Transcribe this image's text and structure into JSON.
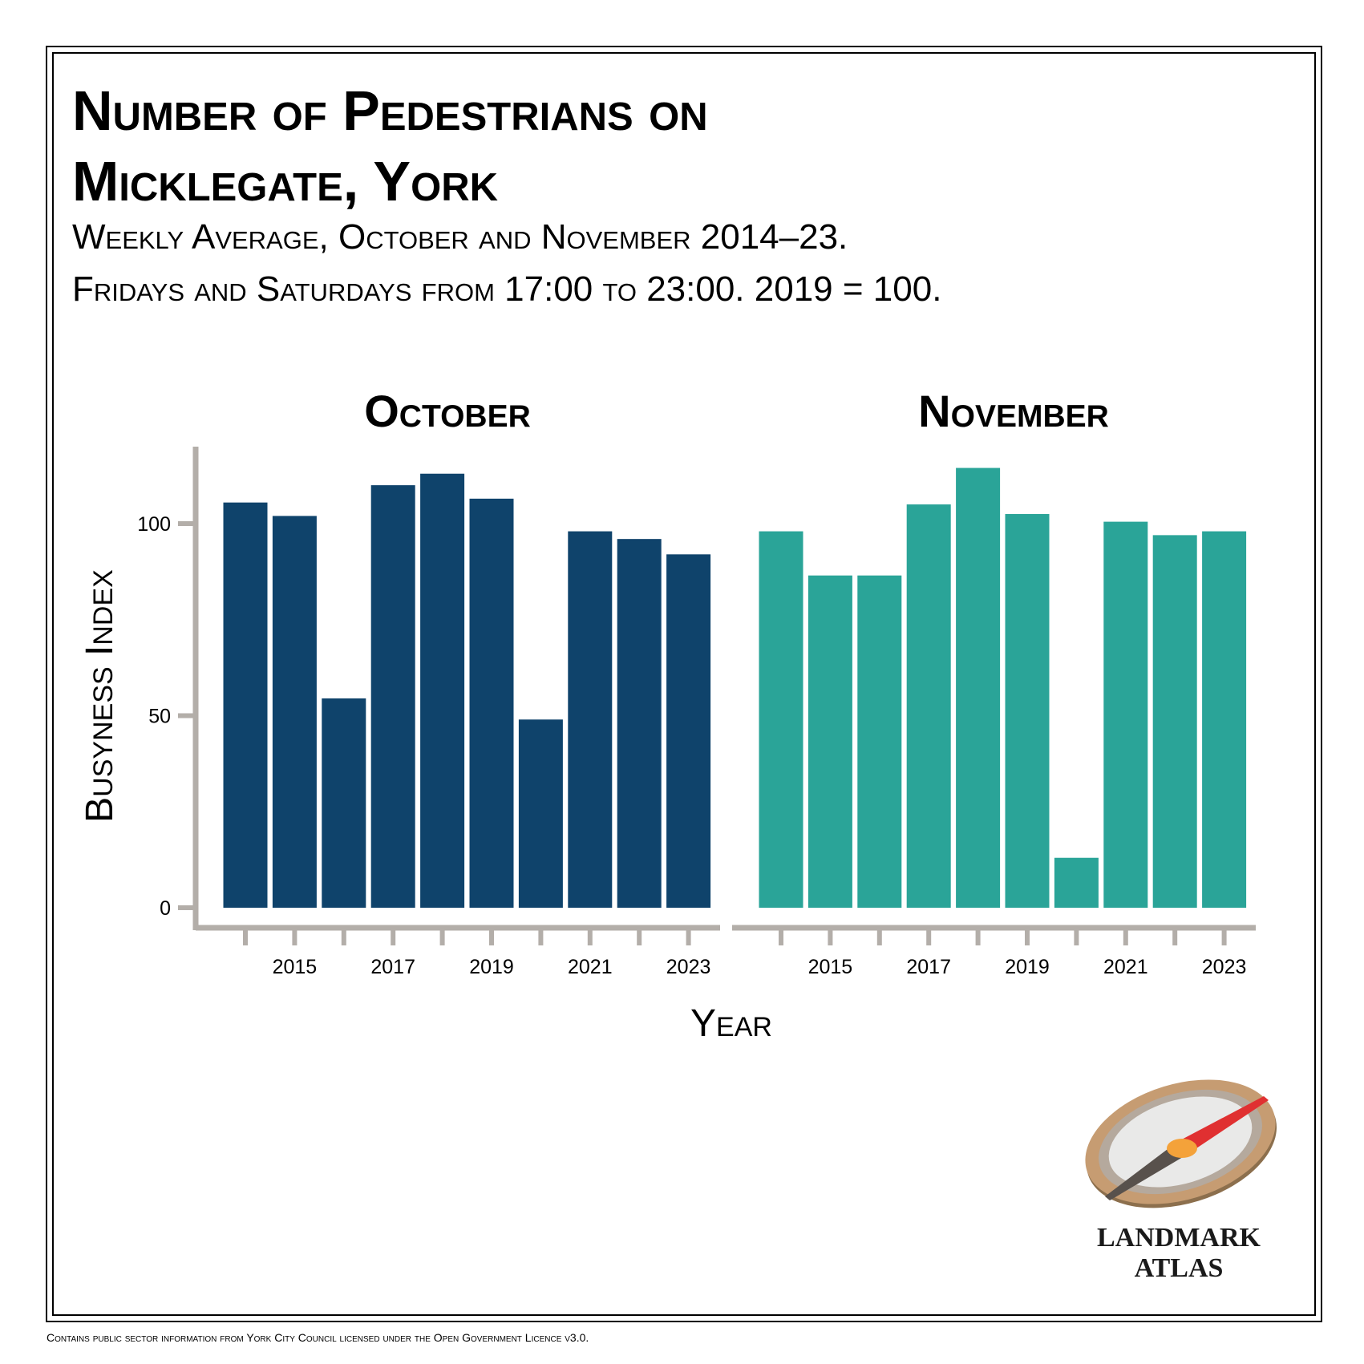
{
  "title_line1": "Number of Pedestrians on",
  "title_line2": "Micklegate, York",
  "subtitle_line1": "Weekly Average, October and November 2014–23.",
  "subtitle_line2": "Fridays and Saturdays from 17:00 to 23:00. 2019 = 100.",
  "footer": "Contains public sector information from York City Council licensed under the Open Government Licence v3.0.",
  "logo": {
    "line1": "LANDMARK",
    "line2": "ATLAS"
  },
  "colors": {
    "october": "#0f436b",
    "november": "#2aa498",
    "axis": "#b3aea9"
  },
  "chart_data": {
    "type": "bar",
    "ylabel": "Busyness Index",
    "xlabel": "Year",
    "ylim": [
      0,
      120
    ],
    "yticks": [
      0,
      50,
      100
    ],
    "xticks": [
      2015,
      2017,
      2019,
      2021,
      2023
    ],
    "categories": [
      2014,
      2015,
      2016,
      2017,
      2018,
      2019,
      2020,
      2021,
      2022,
      2023
    ],
    "series": [
      {
        "name": "October",
        "values": [
          105.5,
          102,
          54.5,
          110,
          113,
          106.5,
          49,
          98,
          96,
          92
        ]
      },
      {
        "name": "November",
        "values": [
          98,
          86.5,
          86.5,
          105,
          114.5,
          102.5,
          13,
          100.5,
          97,
          98
        ]
      }
    ]
  }
}
